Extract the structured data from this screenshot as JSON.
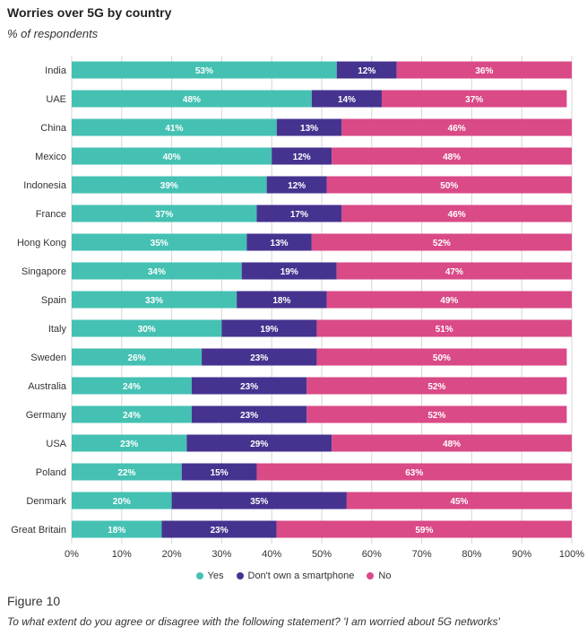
{
  "chart_data": {
    "type": "bar",
    "orientation": "horizontal",
    "stacked": true,
    "title": "Worries over 5G by country",
    "subtitle": "% of respondents",
    "categories": [
      "India",
      "UAE",
      "China",
      "Mexico",
      "Indonesia",
      "France",
      "Hong Kong",
      "Singapore",
      "Spain",
      "Italy",
      "Sweden",
      "Australia",
      "Germany",
      "USA",
      "Poland",
      "Denmark",
      "Great Britain"
    ],
    "series": [
      {
        "name": "Yes",
        "color": "#45c1b3",
        "values": [
          53,
          48,
          41,
          40,
          39,
          37,
          35,
          34,
          33,
          30,
          26,
          24,
          24,
          23,
          22,
          20,
          18
        ]
      },
      {
        "name": "Don't own a smartphone",
        "color": "#46338f",
        "values": [
          12,
          14,
          13,
          12,
          12,
          17,
          13,
          19,
          18,
          19,
          23,
          23,
          23,
          29,
          15,
          35,
          23
        ]
      },
      {
        "name": "No",
        "color": "#d94a86",
        "values": [
          36,
          37,
          46,
          48,
          50,
          46,
          52,
          47,
          49,
          51,
          50,
          52,
          52,
          48,
          63,
          45,
          59
        ]
      }
    ],
    "xlim": [
      0,
      100
    ],
    "xticks": [
      "0%",
      "10%",
      "20%",
      "30%",
      "40%",
      "50%",
      "60%",
      "70%",
      "80%",
      "90%",
      "100%"
    ],
    "grid": true,
    "legend_position": "bottom-center"
  },
  "footer": {
    "figure_label": "Figure 10",
    "caption": "To what extent do you agree or disagree with the following statement? 'I am worried about 5G networks'"
  }
}
